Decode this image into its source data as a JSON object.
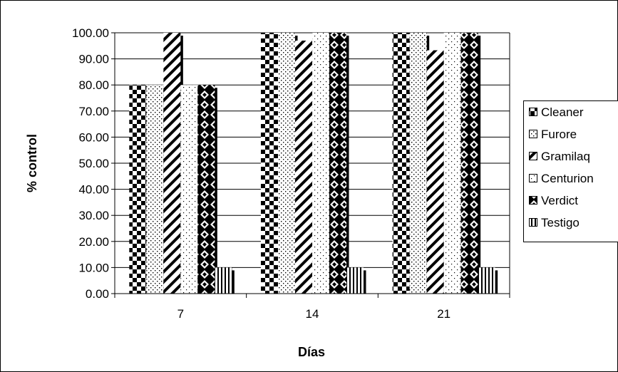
{
  "chart_data": {
    "type": "bar",
    "title": "",
    "xlabel": "Días",
    "ylabel": "% control",
    "categories": [
      "7",
      "14",
      "21"
    ],
    "ylim": [
      0,
      100
    ],
    "ytick_step": 10,
    "ytick_labels": [
      "0.00",
      "10.00",
      "20.00",
      "30.00",
      "40.00",
      "50.00",
      "60.00",
      "70.00",
      "80.00",
      "90.00",
      "100.00"
    ],
    "grid": true,
    "legend_position": "right",
    "series": [
      {
        "name": "Cleaner",
        "values": [
          80,
          100,
          100
        ],
        "pattern": "checker"
      },
      {
        "name": "Furore",
        "values": [
          80,
          100,
          100
        ],
        "pattern": "dots"
      },
      {
        "name": "Gramilaq",
        "values": [
          100,
          97,
          93.3
        ],
        "pattern": "diagonal"
      },
      {
        "name": "Centurion",
        "values": [
          80,
          100,
          100
        ],
        "pattern": "sparse-dots"
      },
      {
        "name": "Verdict",
        "values": [
          80,
          100,
          100
        ],
        "pattern": "diamonds"
      },
      {
        "name": "Testigo",
        "values": [
          10,
          10,
          10
        ],
        "pattern": "vertical-stripes"
      }
    ]
  }
}
